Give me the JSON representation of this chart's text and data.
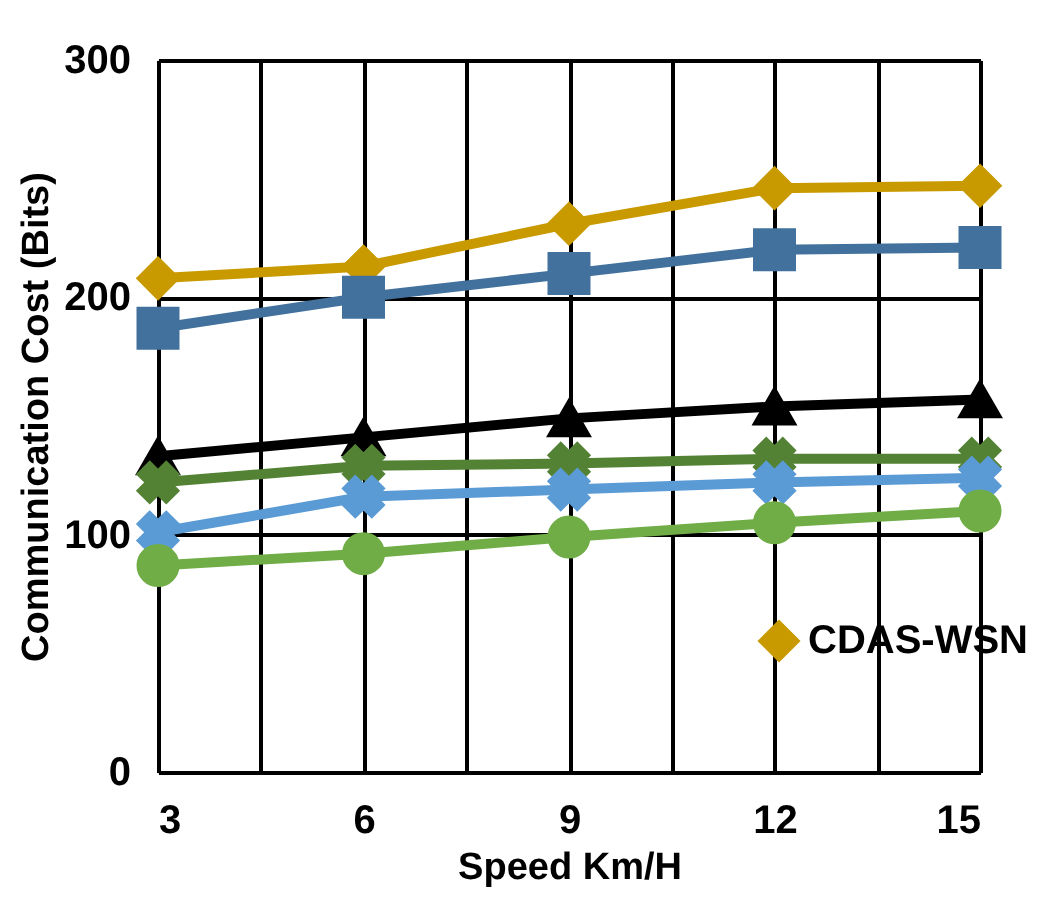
{
  "chart_data": {
    "type": "line",
    "xlabel": "Speed Km/H",
    "ylabel": "Communication Cost (Bits)",
    "x": [
      3,
      6,
      9,
      12,
      15
    ],
    "xlim": [
      3,
      15
    ],
    "xticks": [
      3,
      {
        "value": 4.5,
        "label": null
      },
      6,
      {
        "value": 7.5,
        "label": null
      },
      9,
      {
        "value": 10.5,
        "label": null
      },
      12,
      {
        "value": 13.5,
        "label": null
      },
      15
    ],
    "ylim": [
      0,
      300
    ],
    "yticks": [
      0,
      100,
      200,
      300
    ],
    "grid": true,
    "legend": "right",
    "series": [
      {
        "name": "CDAS-WSN",
        "color": "#c99a00",
        "marker": "diamond",
        "values": [
          208,
          213,
          231,
          246,
          247
        ]
      },
      {
        "color": "#41719c",
        "marker": "square",
        "values": [
          187,
          200,
          210,
          220,
          221
        ]
      },
      {
        "color": "#000000",
        "marker": "triangle",
        "values": [
          133,
          141,
          149,
          154,
          157
        ]
      },
      {
        "color": "#548235",
        "marker": "cross",
        "values": [
          122,
          129,
          130,
          132,
          132
        ]
      },
      {
        "color": "#5b9bd5",
        "marker": "cross",
        "values": [
          101,
          116,
          119,
          122,
          124
        ]
      },
      {
        "color": "#70ad47",
        "marker": "circle",
        "values": [
          87,
          92,
          99,
          105,
          110
        ]
      }
    ]
  }
}
